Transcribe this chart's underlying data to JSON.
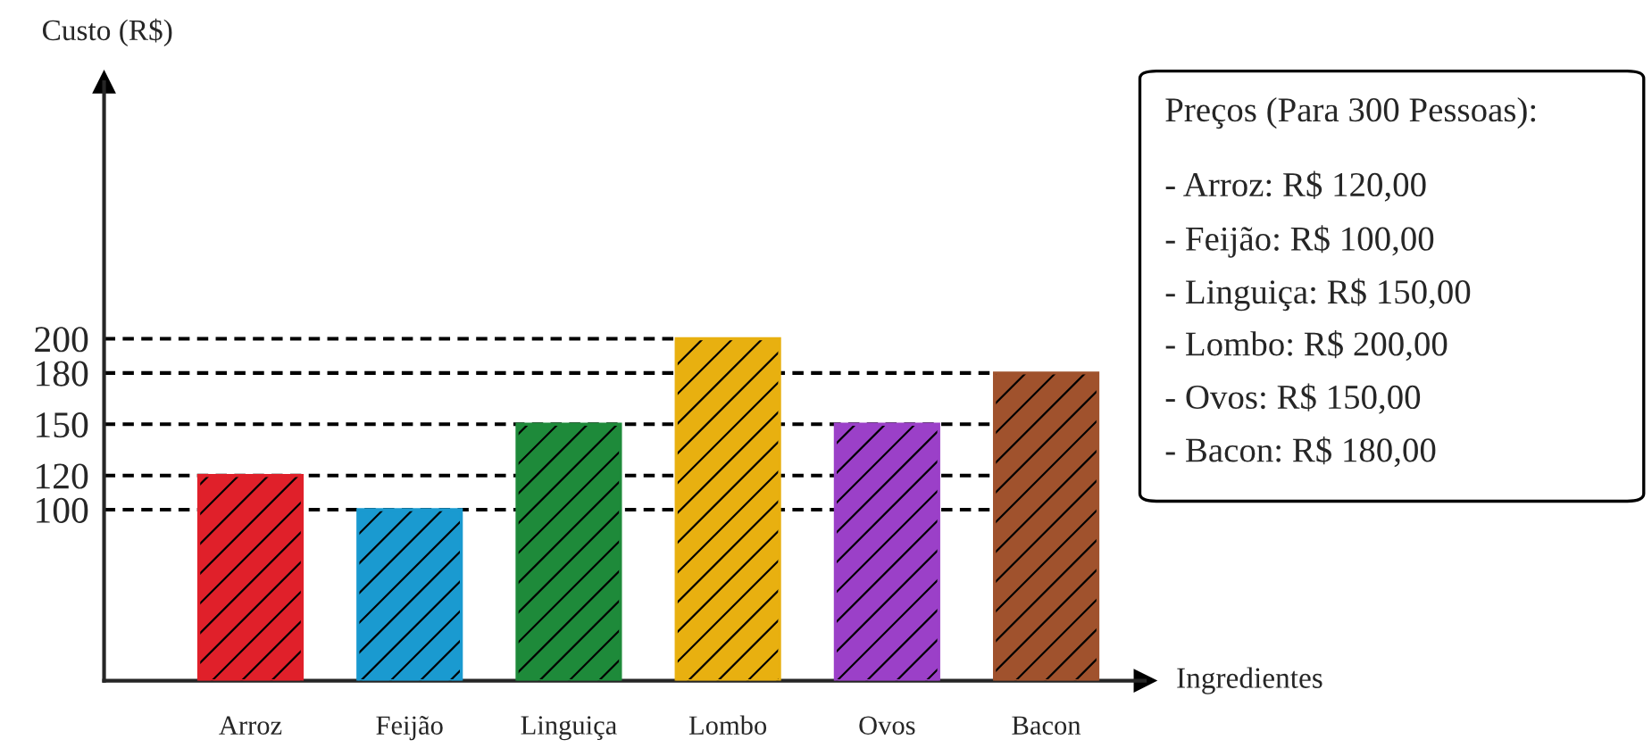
{
  "chart_data": {
    "type": "bar",
    "ylabel": "Custo (R$)",
    "xlabel": "Ingredientes",
    "categories": [
      "Arroz",
      "Feijão",
      "Linguiça",
      "Lombo",
      "Ovos",
      "Bacon"
    ],
    "values": [
      120,
      100,
      150,
      200,
      150,
      180
    ],
    "colors": [
      "#e0202a",
      "#1a9ad0",
      "#1e8a3a",
      "#e8b010",
      "#9b40c8",
      "#a0522d"
    ],
    "ylim": [
      0,
      350
    ],
    "yticks": [
      100,
      120,
      150,
      180,
      200
    ],
    "ref_lines": [
      {
        "axis": "y",
        "value": 100,
        "line_style": "dashed"
      },
      {
        "axis": "y",
        "value": 120,
        "line_style": "dashed"
      },
      {
        "axis": "y",
        "value": 150,
        "line_style": "dashed"
      },
      {
        "axis": "y",
        "value": 180,
        "line_style": "dashed"
      },
      {
        "axis": "y",
        "value": 200,
        "line_style": "dashed"
      }
    ],
    "annotations": [
      "Preços (Para 300 Pessoas):",
      "- Arroz: R$ 120,00",
      "- Feijão: R$ 100,00",
      "- Linguiça: R$ 150,00",
      "- Lombo: R$ 200,00",
      "- Ovos: R$ 150,00",
      "- Bacon: R$ 180,00"
    ],
    "grid": false,
    "legend": false
  }
}
